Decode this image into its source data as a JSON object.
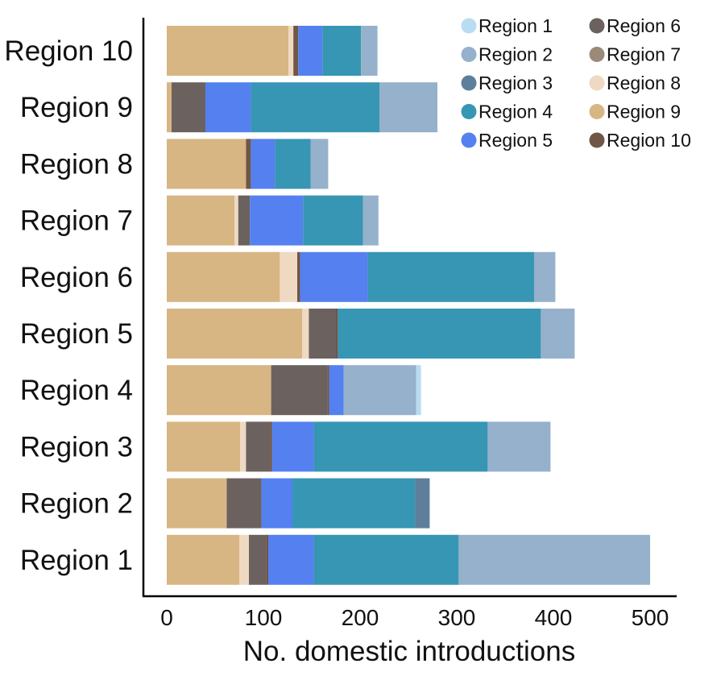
{
  "chart_data": {
    "type": "bar",
    "orientation": "horizontal",
    "stacked": true,
    "xlabel": "No. domestic introductions",
    "ylabel": "",
    "xlim": [
      0,
      500
    ],
    "xticks": [
      0,
      100,
      200,
      300,
      400,
      500
    ],
    "grid": false,
    "legend_position": "top-right",
    "categories": [
      "Region 10",
      "Region 9",
      "Region 8",
      "Region 7",
      "Region 6",
      "Region 5",
      "Region 4",
      "Region 3",
      "Region 2",
      "Region 1"
    ],
    "segment_order": [
      "Region 9",
      "Region 8",
      "Region 7",
      "Region 6",
      "Region 10",
      "Region 5",
      "Region 4",
      "Region 3",
      "Region 2",
      "Region 1"
    ],
    "series": [
      {
        "name": "Region 1",
        "color": "#b8dcf2",
        "values": [
          0,
          0,
          0,
          0,
          0,
          0,
          5,
          0,
          0,
          0
        ]
      },
      {
        "name": "Region 2",
        "color": "#96b1cb",
        "values": [
          17,
          60,
          18,
          16,
          22,
          35,
          75,
          65,
          0,
          198
        ]
      },
      {
        "name": "Region 3",
        "color": "#5e7f9b",
        "values": [
          0,
          0,
          0,
          0,
          0,
          0,
          0,
          0,
          15,
          0
        ]
      },
      {
        "name": "Region 4",
        "color": "#3796b3",
        "values": [
          40,
          133,
          37,
          62,
          172,
          210,
          0,
          180,
          127,
          150
        ]
      },
      {
        "name": "Region 5",
        "color": "#5580f0",
        "values": [
          25,
          47,
          25,
          55,
          70,
          0,
          15,
          43,
          32,
          47
        ]
      },
      {
        "name": "Region 6",
        "color": "#6b6260",
        "values": [
          0,
          35,
          0,
          12,
          0,
          28,
          58,
          25,
          36,
          18
        ]
      },
      {
        "name": "Region 7",
        "color": "#9b8a78",
        "values": [
          0,
          0,
          0,
          0,
          0,
          0,
          0,
          0,
          0,
          0
        ]
      },
      {
        "name": "Region 8",
        "color": "#efd9c3",
        "values": [
          5,
          0,
          0,
          4,
          18,
          7,
          0,
          6,
          0,
          10
        ]
      },
      {
        "name": "Region 9",
        "color": "#d7b684",
        "values": [
          126,
          5,
          82,
          70,
          117,
          140,
          108,
          76,
          62,
          75
        ]
      },
      {
        "name": "Region 10",
        "color": "#6f5645",
        "values": [
          5,
          0,
          5,
          0,
          3,
          2,
          2,
          2,
          0,
          2
        ]
      }
    ]
  }
}
